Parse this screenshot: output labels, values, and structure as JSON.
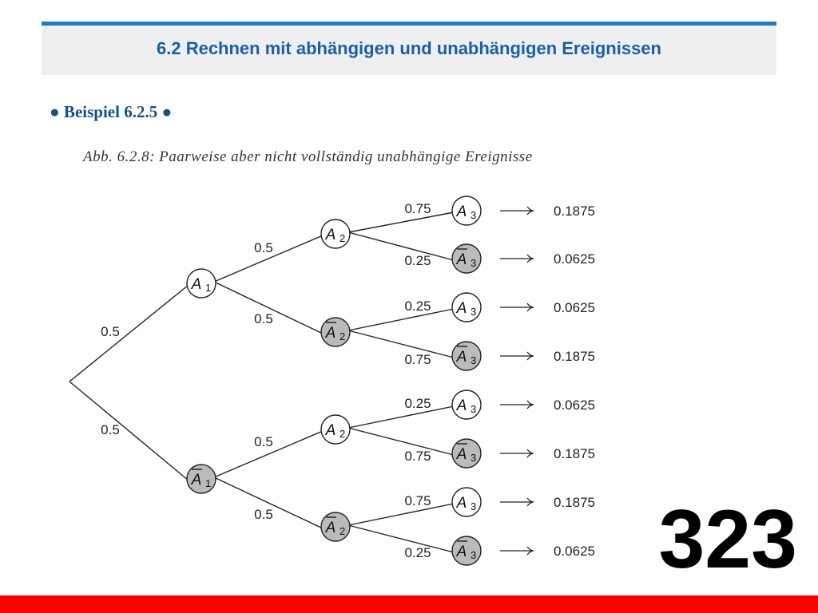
{
  "header": {
    "title": "6.2 Rechnen mit abhängigen und unabhängigen Ereignissen"
  },
  "example": {
    "label": "● Beispiel 6.2.5 ●"
  },
  "figure": {
    "caption": "Abb. 6.2.8: Paarweise aber nicht vollständig unabhängige Ereignisse"
  },
  "tree": {
    "nodes": [
      {
        "id": "A1",
        "base": "A",
        "sub": "1",
        "complement": false
      },
      {
        "id": "A1bar",
        "base": "A",
        "sub": "1",
        "complement": true
      },
      {
        "id": "A2-a",
        "base": "A",
        "sub": "2",
        "complement": false
      },
      {
        "id": "A2bar-a",
        "base": "A",
        "sub": "2",
        "complement": true
      },
      {
        "id": "A2-b",
        "base": "A",
        "sub": "2",
        "complement": false
      },
      {
        "id": "A2bar-b",
        "base": "A",
        "sub": "2",
        "complement": true
      },
      {
        "id": "A3-1",
        "base": "A",
        "sub": "3",
        "complement": false
      },
      {
        "id": "A3bar-2",
        "base": "A",
        "sub": "3",
        "complement": true
      },
      {
        "id": "A3-3",
        "base": "A",
        "sub": "3",
        "complement": false
      },
      {
        "id": "A3bar-4",
        "base": "A",
        "sub": "3",
        "complement": true
      },
      {
        "id": "A3-5",
        "base": "A",
        "sub": "3",
        "complement": false
      },
      {
        "id": "A3bar-6",
        "base": "A",
        "sub": "3",
        "complement": true
      },
      {
        "id": "A3-7",
        "base": "A",
        "sub": "3",
        "complement": false
      },
      {
        "id": "A3bar-8",
        "base": "A",
        "sub": "3",
        "complement": true
      }
    ],
    "branches": [
      {
        "from": "root",
        "to": "A1",
        "p": "0.5"
      },
      {
        "from": "root",
        "to": "A1bar",
        "p": "0.5"
      },
      {
        "from": "A1",
        "to": "A2-a",
        "p": "0.5"
      },
      {
        "from": "A1",
        "to": "A2bar-a",
        "p": "0.5"
      },
      {
        "from": "A1bar",
        "to": "A2-b",
        "p": "0.5"
      },
      {
        "from": "A1bar",
        "to": "A2bar-b",
        "p": "0.5"
      },
      {
        "from": "A2-a",
        "to": "A3-1",
        "p": "0.75"
      },
      {
        "from": "A2-a",
        "to": "A3bar-2",
        "p": "0.25"
      },
      {
        "from": "A2bar-a",
        "to": "A3-3",
        "p": "0.25"
      },
      {
        "from": "A2bar-a",
        "to": "A3bar-4",
        "p": "0.75"
      },
      {
        "from": "A2-b",
        "to": "A3-5",
        "p": "0.25"
      },
      {
        "from": "A2-b",
        "to": "A3bar-6",
        "p": "0.75"
      },
      {
        "from": "A2bar-b",
        "to": "A3-7",
        "p": "0.75"
      },
      {
        "from": "A2bar-b",
        "to": "A3bar-8",
        "p": "0.25"
      }
    ],
    "outcomes": [
      "0.1875",
      "0.0625",
      "0.0625",
      "0.1875",
      "0.0625",
      "0.1875",
      "0.1875",
      "0.0625"
    ]
  },
  "page_number": "323",
  "colors": {
    "title": "#1a5fa8",
    "rule": "#1a7cc4",
    "complement_fill": "#bbbbbb",
    "footer": "#ff0000"
  }
}
